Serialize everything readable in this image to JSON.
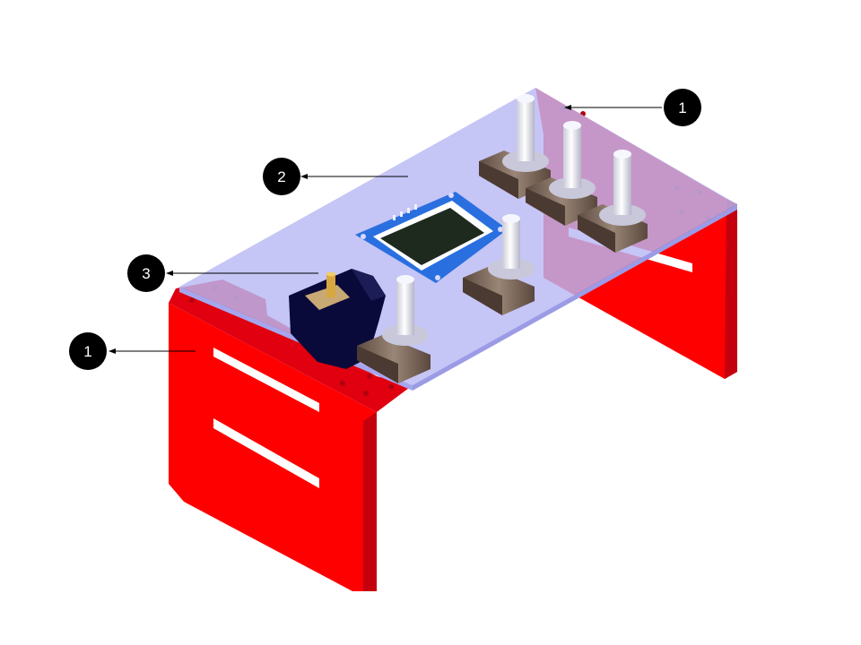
{
  "diagram": {
    "callouts": [
      {
        "id": "callout-a",
        "label": "1"
      },
      {
        "id": "callout-b",
        "label": "2"
      },
      {
        "id": "callout-c",
        "label": "3"
      },
      {
        "id": "callout-d",
        "label": "1"
      }
    ],
    "colors": {
      "bracket": "#ff0000",
      "bracket_shade": "#c00010",
      "plate": "#b8b8f4",
      "plate_edge": "#a6a6ee",
      "oled_pcb": "#2a6fe0",
      "oled_screen": "#1e2a1e",
      "servo": "#0a0a3a",
      "knob": "#e8e8f0",
      "pot_body": "#7d6a5e",
      "callout_fill": "#000000"
    }
  }
}
